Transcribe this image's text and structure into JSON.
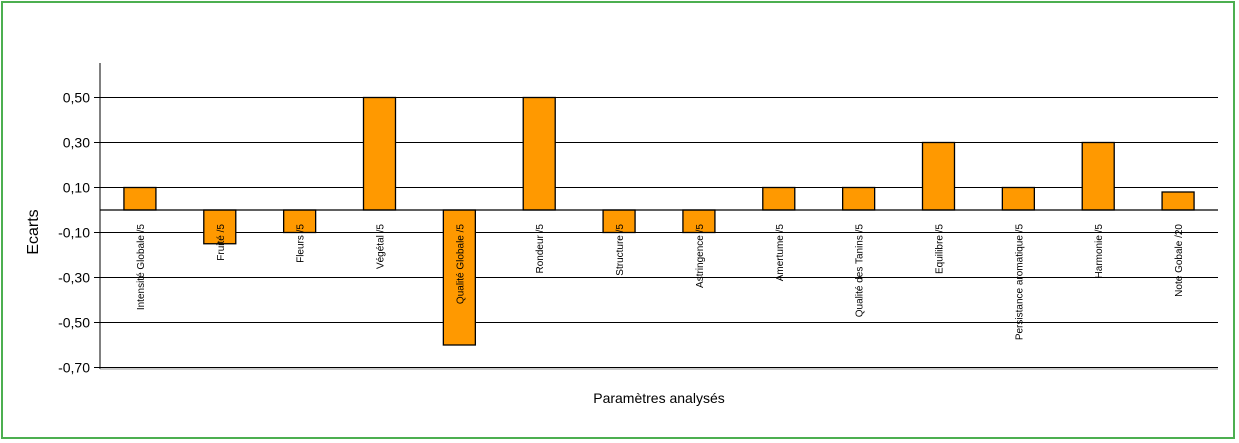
{
  "colors": {
    "frame": "#4caf50",
    "bar": "#ff9900",
    "bar_stroke": "#000000",
    "grid": "#000000"
  },
  "chart_data": {
    "type": "bar",
    "title": "",
    "xlabel": "Paramètres analysés",
    "ylabel": "Ecarts",
    "ylim": [
      -0.7,
      0.6
    ],
    "grid": true,
    "legend": "none",
    "yticks": [
      -0.7,
      -0.5,
      -0.3,
      -0.1,
      0.1,
      0.3,
      0.5
    ],
    "ytick_labels": [
      "-0,70",
      "-0,50",
      "-0,30",
      "-0,10",
      "0,10",
      "0,30",
      "0,50"
    ],
    "categories": [
      "Intensité Globale /5",
      "Fruité /5",
      "Fleurs /5",
      "Végétal /5",
      "Qualité Globale /5",
      "Rondeur /5",
      "Structure /5",
      "Astringence /5",
      "Amertume /5",
      "Qualité des Tanins /5",
      "Equilibre /5",
      "Persistance aromatique /5",
      "Harmonie /5",
      "Note Gobale /20"
    ],
    "values": [
      0.1,
      -0.15,
      -0.1,
      0.5,
      -0.6,
      0.5,
      -0.1,
      -0.1,
      0.1,
      0.1,
      0.3,
      0.1,
      0.3,
      0.08
    ]
  }
}
